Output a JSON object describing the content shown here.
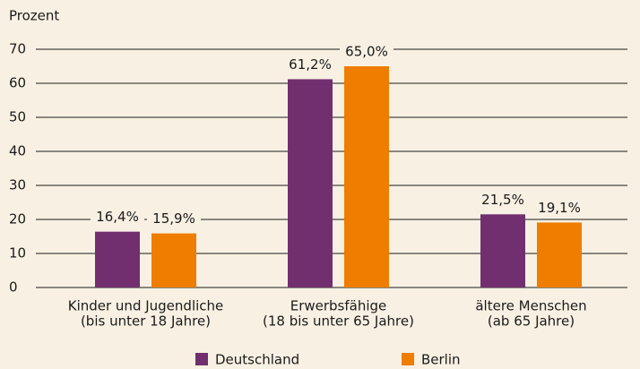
{
  "chart_data": {
    "type": "bar",
    "y_label": "Prozent",
    "categories": [
      [
        "Kinder und Jugendliche",
        "(bis unter 18 Jahre)"
      ],
      [
        "Erwerbsfähige",
        "(18 bis unter 65 Jahre)"
      ],
      [
        "ältere Menschen",
        "(ab 65 Jahre)"
      ]
    ],
    "series": [
      {
        "name": "Deutschland",
        "color": "#722f6f",
        "values": [
          16.4,
          61.2,
          21.5
        ],
        "value_labels": [
          "16,4%",
          "61,2%",
          "21,5%"
        ]
      },
      {
        "name": "Berlin",
        "color": "#ee7d00",
        "values": [
          15.9,
          65.0,
          19.1
        ],
        "value_labels": [
          "15,9%",
          "65,0%",
          "19,1%"
        ]
      }
    ],
    "ylim": [
      0,
      70
    ],
    "yticks": [
      0,
      10,
      20,
      30,
      40,
      50,
      60,
      70
    ],
    "grid": true,
    "legend": "bottom"
  }
}
